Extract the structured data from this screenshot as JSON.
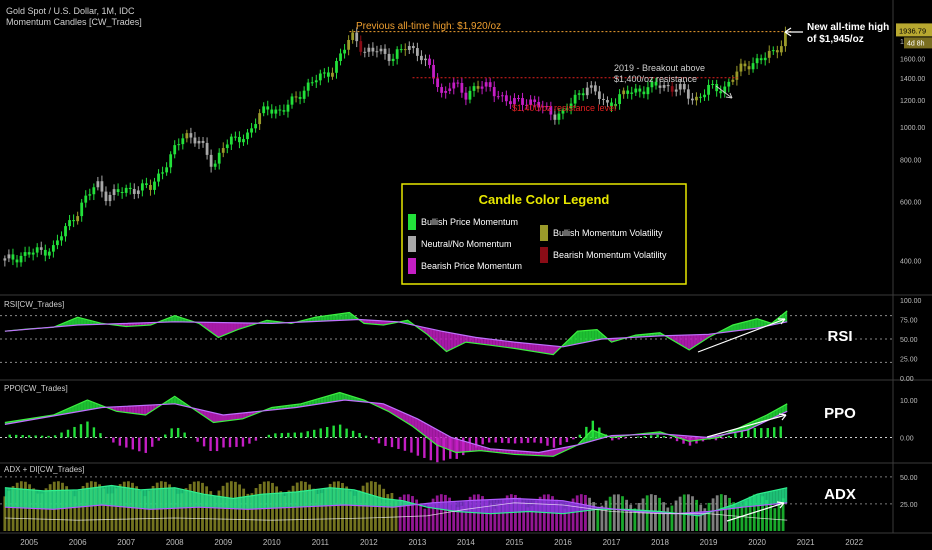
{
  "header": {
    "symbol_title": "Gold Spot / U.S. Dollar, 1M, IDC",
    "indicator_name": "Momentum Candles [CW_Trades]"
  },
  "panes": {
    "rsi_label": "RSI[CW_Trades]",
    "ppo_label": "PPO[CW_Trades]",
    "adx_label": "ADX + DI[CW_Trades]",
    "rsi_tag": "RSI",
    "ppo_tag": "PPO",
    "adx_tag": "ADX"
  },
  "price_axis": {
    "ticks": [
      "2000.00",
      "1800.00",
      "1600.00",
      "1400.00",
      "1200.00",
      "1000.00",
      "800.00",
      "600.00",
      "400.00"
    ],
    "last_price": "1936.79",
    "countdown": "4d 8h"
  },
  "rsi_axis": {
    "ticks": [
      "100.00",
      "75.00",
      "50.00",
      "25.00",
      "0.00"
    ]
  },
  "ppo_axis": {
    "ticks": [
      "10.00",
      "0.00"
    ]
  },
  "adx_axis": {
    "ticks": [
      "50.00",
      "25.00"
    ]
  },
  "time_axis": {
    "ticks": [
      "2005",
      "2006",
      "2007",
      "2008",
      "2009",
      "2010",
      "2011",
      "2012",
      "2013",
      "2014",
      "2015",
      "2016",
      "2017",
      "2018",
      "2019",
      "2020",
      "2021",
      "2022"
    ]
  },
  "annotations": {
    "prev_ath": "Previous all-time high: $1,920/oz",
    "new_ath_line1": "New all-time high",
    "new_ath_line2": "of $1,945/oz",
    "breakout_line1": "2019 - Breakout above",
    "breakout_line2": "$1,400/oz resistance",
    "resistance": "$1,400/oz resistance level"
  },
  "legend": {
    "title": "Candle Color Legend",
    "items": [
      {
        "label": "Bullish Price Momentum",
        "color": "#22e03a"
      },
      {
        "label": "Neutral/No Momentum",
        "color": "#a8a8a8"
      },
      {
        "label": "Bearish Price Momentum",
        "color": "#c41ec4"
      },
      {
        "label": "Bullish Momentum Volatility",
        "color": "#9a9a2a"
      },
      {
        "label": "Bearish Momentum Volatility",
        "color": "#8a0c16"
      }
    ]
  },
  "colors": {
    "background": "#000000",
    "bullish": "#22e03a",
    "neutral": "#a8a8a8",
    "bearish": "#c41ec4",
    "bull_vol": "#9a9a2a",
    "bear_vol": "#8a0c16",
    "prev_ath_line": "#f0a030",
    "resistance_line": "#e02020",
    "legend_border": "#e8e800",
    "price_tag": "#b8a830"
  },
  "chart_data": {
    "type": "candlestick",
    "instrument": "Gold Spot / U.S. Dollar",
    "timeframe": "1M",
    "y_scale": "log",
    "x_range": [
      2004.4,
      2022.8
    ],
    "ylim": [
      350,
      2080
    ],
    "price_path": [
      [
        2004.5,
        400
      ],
      [
        2005.0,
        420
      ],
      [
        2005.5,
        435
      ],
      [
        2006.0,
        560
      ],
      [
        2006.4,
        680
      ],
      [
        2006.6,
        620
      ],
      [
        2007.0,
        650
      ],
      [
        2007.5,
        660
      ],
      [
        2007.9,
        800
      ],
      [
        2008.2,
        960
      ],
      [
        2008.5,
        900
      ],
      [
        2008.8,
        760
      ],
      [
        2009.0,
        880
      ],
      [
        2009.5,
        950
      ],
      [
        2009.9,
        1150
      ],
      [
        2010.2,
        1100
      ],
      [
        2010.5,
        1230
      ],
      [
        2010.9,
        1380
      ],
      [
        2011.3,
        1500
      ],
      [
        2011.6,
        1820
      ],
      [
        2011.7,
        1900
      ],
      [
        2011.9,
        1650
      ],
      [
        2012.2,
        1700
      ],
      [
        2012.5,
        1600
      ],
      [
        2012.8,
        1750
      ],
      [
        2013.0,
        1670
      ],
      [
        2013.3,
        1450
      ],
      [
        2013.5,
        1250
      ],
      [
        2013.7,
        1350
      ],
      [
        2014.0,
        1240
      ],
      [
        2014.2,
        1330
      ],
      [
        2014.5,
        1300
      ],
      [
        2014.9,
        1180
      ],
      [
        2015.3,
        1200
      ],
      [
        2015.8,
        1090
      ],
      [
        2016.0,
        1100
      ],
      [
        2016.5,
        1330
      ],
      [
        2016.9,
        1160
      ],
      [
        2017.3,
        1260
      ],
      [
        2017.7,
        1300
      ],
      [
        2018.0,
        1330
      ],
      [
        2018.4,
        1300
      ],
      [
        2018.7,
        1200
      ],
      [
        2019.0,
        1300
      ],
      [
        2019.3,
        1290
      ],
      [
        2019.5,
        1410
      ],
      [
        2019.7,
        1500
      ],
      [
        2020.0,
        1580
      ],
      [
        2020.3,
        1640
      ],
      [
        2020.5,
        1780
      ],
      [
        2020.62,
        1936.79
      ]
    ],
    "levels": [
      {
        "label": "Previous all-time high: $1,920/oz",
        "value": 1920
      },
      {
        "label": "$1,400/oz resistance level",
        "value": 1400
      }
    ],
    "last_price": 1936.79,
    "indicators": [
      {
        "name": "RSI[CW_Trades]",
        "ylim": [
          0,
          100
        ],
        "levels": [
          80,
          50,
          20
        ],
        "series": [
          {
            "points": [
              [
                2004.5,
                60
              ],
              [
                2005,
                63
              ],
              [
                2005.5,
                65
              ],
              [
                2006,
                78
              ],
              [
                2006.5,
                70
              ],
              [
                2007,
                66
              ],
              [
                2007.5,
                68
              ],
              [
                2008,
                80
              ],
              [
                2008.5,
                70
              ],
              [
                2008.9,
                52
              ],
              [
                2009.3,
                62
              ],
              [
                2009.9,
                74
              ],
              [
                2010.4,
                70
              ],
              [
                2010.9,
                78
              ],
              [
                2011.6,
                84
              ],
              [
                2011.9,
                70
              ],
              [
                2012.3,
                68
              ],
              [
                2012.8,
                74
              ],
              [
                2013.2,
                56
              ],
              [
                2013.6,
                34
              ],
              [
                2014,
                46
              ],
              [
                2014.5,
                42
              ],
              [
                2015,
                38
              ],
              [
                2015.8,
                30
              ],
              [
                2016.3,
                60
              ],
              [
                2016.7,
                62
              ],
              [
                2017,
                46
              ],
              [
                2017.5,
                55
              ],
              [
                2018,
                58
              ],
              [
                2018.6,
                36
              ],
              [
                2019,
                52
              ],
              [
                2019.5,
                68
              ],
              [
                2020,
                76
              ],
              [
                2020.3,
                70
              ],
              [
                2020.62,
                86
              ]
            ]
          },
          {
            "points": [
              [
                2004.5,
                60
              ],
              [
                2006,
                68
              ],
              [
                2008,
                72
              ],
              [
                2010,
                70
              ],
              [
                2011.8,
                75
              ],
              [
                2012.6,
                72
              ],
              [
                2013.5,
                60
              ],
              [
                2014.2,
                52
              ],
              [
                2015,
                46
              ],
              [
                2016,
                40
              ],
              [
                2016.8,
                50
              ],
              [
                2018,
                54
              ],
              [
                2019,
                56
              ],
              [
                2020,
                64
              ],
              [
                2020.62,
                72
              ]
            ]
          }
        ]
      },
      {
        "name": "PPO[CW_Trades]",
        "ylim": [
          -6,
          14
        ],
        "series": [
          {
            "points": [
              [
                2004.5,
                4
              ],
              [
                2005.5,
                6
              ],
              [
                2006.2,
                10
              ],
              [
                2006.8,
                7
              ],
              [
                2007.4,
                6
              ],
              [
                2008,
                11
              ],
              [
                2008.8,
                4
              ],
              [
                2009.4,
                5
              ],
              [
                2010,
                8
              ],
              [
                2010.6,
                9
              ],
              [
                2011.4,
                12
              ],
              [
                2011.9,
                10
              ],
              [
                2012.4,
                7
              ],
              [
                2012.9,
                3
              ],
              [
                2013.4,
                -2
              ],
              [
                2013.8,
                -4
              ],
              [
                2014.3,
                -3.5
              ],
              [
                2015,
                -4.5
              ],
              [
                2015.8,
                -5
              ],
              [
                2016.3,
                -2
              ],
              [
                2016.6,
                2
              ],
              [
                2017,
                0
              ],
              [
                2017.6,
                1
              ],
              [
                2018,
                1.5
              ],
              [
                2018.6,
                -1
              ],
              [
                2019.2,
                0
              ],
              [
                2019.7,
                3
              ],
              [
                2020.2,
                6
              ],
              [
                2020.62,
                9
              ]
            ]
          },
          {
            "points": [
              [
                2004.5,
                3.5
              ],
              [
                2006.5,
                8
              ],
              [
                2008,
                9
              ],
              [
                2009,
                6
              ],
              [
                2010.5,
                8
              ],
              [
                2011.5,
                10
              ],
              [
                2012.3,
                9
              ],
              [
                2013,
                5
              ],
              [
                2013.7,
                0
              ],
              [
                2014.5,
                -3
              ],
              [
                2015.5,
                -4
              ],
              [
                2016.3,
                -2
              ],
              [
                2017,
                0.5
              ],
              [
                2018,
                1
              ],
              [
                2019,
                0
              ],
              [
                2019.8,
                2
              ],
              [
                2020.62,
                7
              ]
            ]
          }
        ]
      },
      {
        "name": "ADX + DI[CW_Trades]",
        "ylim": [
          0,
          60
        ],
        "levels": [
          50,
          25
        ],
        "series": [
          {
            "points": [
              [
                2004.5,
                40
              ],
              [
                2005.3,
                37
              ],
              [
                2006,
                38
              ],
              [
                2006.7,
                42
              ],
              [
                2007.3,
                38
              ],
              [
                2008,
                40
              ],
              [
                2008.6,
                34
              ],
              [
                2009.2,
                30
              ],
              [
                2009.8,
                34
              ],
              [
                2010.5,
                36
              ],
              [
                2011.2,
                40
              ],
              [
                2011.7,
                38
              ],
              [
                2012.3,
                30
              ],
              [
                2012.7,
                28
              ],
              [
                2013.2,
                22
              ],
              [
                2013.8,
                18
              ],
              [
                2014.5,
                16
              ],
              [
                2015.3,
                18
              ],
              [
                2016,
                16
              ],
              [
                2016.7,
                20
              ],
              [
                2017.3,
                20
              ],
              [
                2018,
                18
              ],
              [
                2018.8,
                14
              ],
              [
                2019.5,
                24
              ],
              [
                2020,
                34
              ],
              [
                2020.62,
                40
              ]
            ]
          },
          {
            "points": [
              [
                2004.5,
                22
              ],
              [
                2005.5,
                20
              ],
              [
                2006.5,
                24
              ],
              [
                2007.5,
                20
              ],
              [
                2008.5,
                22
              ],
              [
                2009.5,
                20
              ],
              [
                2010.5,
                22
              ],
              [
                2011.5,
                24
              ],
              [
                2012.5,
                22
              ],
              [
                2013.3,
                26
              ],
              [
                2014,
                28
              ],
              [
                2015,
                30
              ],
              [
                2016,
                28
              ],
              [
                2016.7,
                22
              ],
              [
                2017.5,
                18
              ],
              [
                2018.3,
                16
              ],
              [
                2019,
                18
              ],
              [
                2019.7,
                22
              ],
              [
                2020.62,
                26
              ]
            ]
          },
          {
            "points": [
              [
                2004.5,
                12
              ],
              [
                2006,
                10
              ],
              [
                2008,
                12
              ],
              [
                2010,
                10
              ],
              [
                2012,
                12
              ],
              [
                2013.2,
                14
              ],
              [
                2014,
                20
              ],
              [
                2015,
                26
              ],
              [
                2016,
                24
              ],
              [
                2017,
                18
              ],
              [
                2018,
                16
              ],
              [
                2019,
                16
              ],
              [
                2020,
                12
              ],
              [
                2020.62,
                10
              ]
            ]
          }
        ]
      }
    ]
  }
}
